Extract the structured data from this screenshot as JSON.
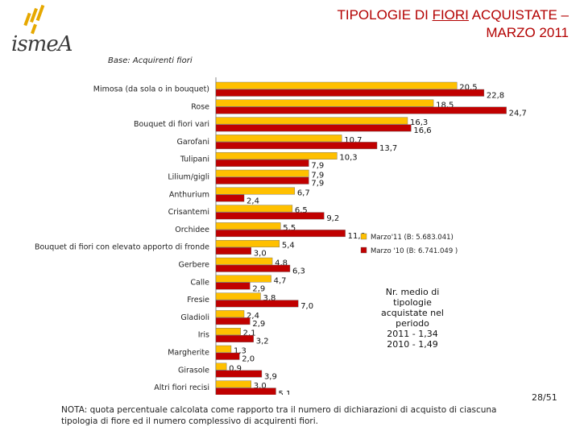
{
  "header": {
    "logo_text": "ismeA",
    "title_prefix": "TIPOLOGIE DI ",
    "title_underlined": "FIORI",
    "title_suffix": " ACQUISTATE –",
    "title_line2": "MARZO 2011",
    "base_label": "Base: Acquirenti fiori"
  },
  "chart_data": {
    "type": "bar",
    "orientation": "horizontal",
    "categories": [
      "Mimosa (da sola o in bouquet)",
      "Rose",
      "Bouquet di fiori vari",
      "Garofani",
      "Tulipani",
      "Lilium/gigli",
      "Anthurium",
      "Crisantemi",
      "Orchidee",
      "Bouquet di fiori con elevato apporto di fronde",
      "Gerbere",
      "Calle",
      "Fresie",
      "Gladioli",
      "Iris",
      "Margherite",
      "Girasole",
      "Altri fiori recisi"
    ],
    "series": [
      {
        "name": "Marzo'11 (B: 5.683.041)",
        "color": "#ffc000",
        "values": [
          20.5,
          18.5,
          16.3,
          10.7,
          10.3,
          7.9,
          6.7,
          6.5,
          5.5,
          5.4,
          4.8,
          4.7,
          3.8,
          2.4,
          2.1,
          1.3,
          0.9,
          3.0
        ]
      },
      {
        "name": "Marzo '10 (B: 6.741.049 )",
        "color": "#c00000",
        "values": [
          22.8,
          24.7,
          16.6,
          13.7,
          7.9,
          7.9,
          2.4,
          9.2,
          11.0,
          3.0,
          6.3,
          2.9,
          7.0,
          2.9,
          3.2,
          2.0,
          3.9,
          5.1
        ]
      }
    ],
    "legend_position": "right",
    "grid": false
  },
  "note_box": [
    "Nr. medio di",
    "tipologie",
    "acquistate nel",
    "periodo",
    "2011 - 1,34",
    "2010 - 1,49"
  ],
  "footnote": "NOTA: quota percentuale calcolata come rapporto tra il numero di dichiarazioni di acquisto di ciascuna tipologia di fiore ed il numero complessivo di acquirenti fiori.",
  "page_number": "28/51"
}
